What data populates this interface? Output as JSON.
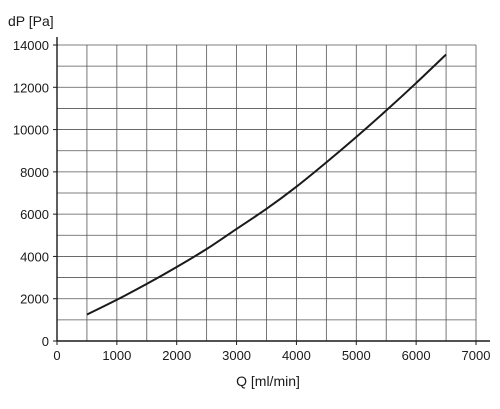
{
  "chart_data": {
    "type": "line",
    "xlabel": "Q [ml/min]",
    "ylabel": "dP [Pa]",
    "xlim": [
      0,
      7000
    ],
    "ylim": [
      0,
      14000
    ],
    "x_ticks": [
      0,
      1000,
      2000,
      3000,
      4000,
      5000,
      6000,
      7000
    ],
    "y_ticks": [
      0,
      2000,
      4000,
      6000,
      8000,
      10000,
      12000,
      14000
    ],
    "x_minor_step": 500,
    "y_minor_step": 1000,
    "grid": true,
    "line_color": "#1a1a1a",
    "grid_color": "#555555",
    "series": [
      {
        "x": [
          500,
          1000,
          1500,
          2000,
          2500,
          3000,
          3500,
          4000,
          4500,
          5000,
          5500,
          6000,
          6500
        ],
        "values": [
          1250,
          1950,
          2700,
          3500,
          4350,
          5300,
          6250,
          7300,
          8450,
          9650,
          10900,
          12200,
          13550
        ]
      }
    ]
  }
}
